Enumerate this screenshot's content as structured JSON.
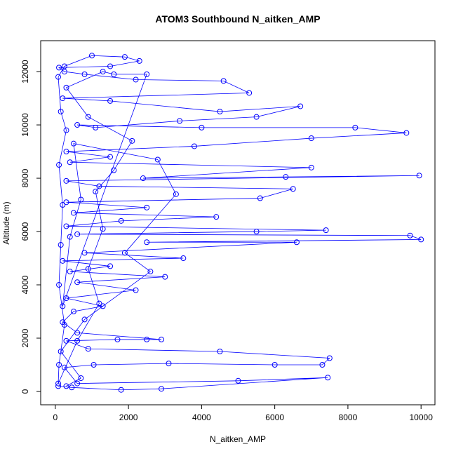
{
  "chart_data": {
    "type": "line",
    "title": "ATOM3 Southbound N_aitken_AMP",
    "x_label": "N_aitken_AMP",
    "y_label": "Altitude (m)",
    "color": "#0000ff",
    "markers": true,
    "xlim": [
      -400,
      10380
    ],
    "ylim": [
      -500,
      13160
    ],
    "xticks": [
      0,
      2000,
      4000,
      6000,
      8000,
      10000
    ],
    "yticks": [
      0,
      2000,
      4000,
      6000,
      8000,
      10000,
      12000
    ],
    "x": [
      80,
      450,
      1800,
      2900,
      7450,
      5000,
      600,
      250,
      1050,
      3100,
      6000,
      7300,
      7500,
      4500,
      900,
      300,
      1700,
      2500,
      2900,
      600,
      200,
      500,
      1300,
      300,
      2200,
      600,
      3000,
      400,
      1500,
      200,
      3500,
      800,
      6600,
      2500,
      10000,
      9700,
      600,
      5500,
      7400,
      300,
      1800,
      4400,
      500,
      2500,
      300,
      5600,
      6500,
      1200,
      300,
      9950,
      6300,
      2400,
      7000,
      400,
      1500,
      300,
      3800,
      7000,
      9600,
      8200,
      4000,
      600,
      1100,
      3400,
      5500,
      6700,
      4500,
      1500,
      200,
      5300,
      4600,
      2200,
      800,
      250,
      100,
      1500,
      2300,
      1900,
      1000,
      250,
      80,
      150,
      300,
      100,
      200,
      150,
      100,
      250,
      100,
      80,
      600,
      1200,
      900,
      1300,
      1100,
      1600,
      2100,
      900,
      300,
      1300,
      1600,
      2500,
      200,
      400,
      700,
      500,
      2800,
      3300,
      1900,
      2600,
      800,
      150,
      700,
      300
    ],
    "values": [
      200,
      150,
      60,
      100,
      520,
      400,
      300,
      900,
      1000,
      1050,
      1000,
      1000,
      1250,
      1500,
      1600,
      1900,
      1950,
      1950,
      1950,
      2200,
      2600,
      3000,
      3200,
      3500,
      3800,
      4100,
      4300,
      4500,
      4700,
      4900,
      5000,
      5200,
      5600,
      5600,
      5700,
      5850,
      5900,
      6000,
      6050,
      6200,
      6400,
      6550,
      6700,
      6900,
      7100,
      7250,
      7600,
      7700,
      7900,
      8100,
      8050,
      8000,
      8400,
      8600,
      8800,
      9000,
      9200,
      9500,
      9700,
      9900,
      9900,
      10000,
      9900,
      10150,
      10300,
      10700,
      10500,
      10900,
      11000,
      11200,
      11650,
      11700,
      11900,
      12000,
      12150,
      12200,
      12400,
      12550,
      12600,
      12200,
      11800,
      10500,
      9800,
      8500,
      7000,
      5500,
      4000,
      2500,
      1000,
      300,
      1900,
      3300,
      4600,
      6100,
      7500,
      8300,
      9400,
      10300,
      11400,
      12000,
      11900,
      11900,
      3200,
      5800,
      7200,
      9300,
      8700,
      7400,
      5200,
      4500,
      2700,
      1500,
      500,
      200
    ]
  }
}
